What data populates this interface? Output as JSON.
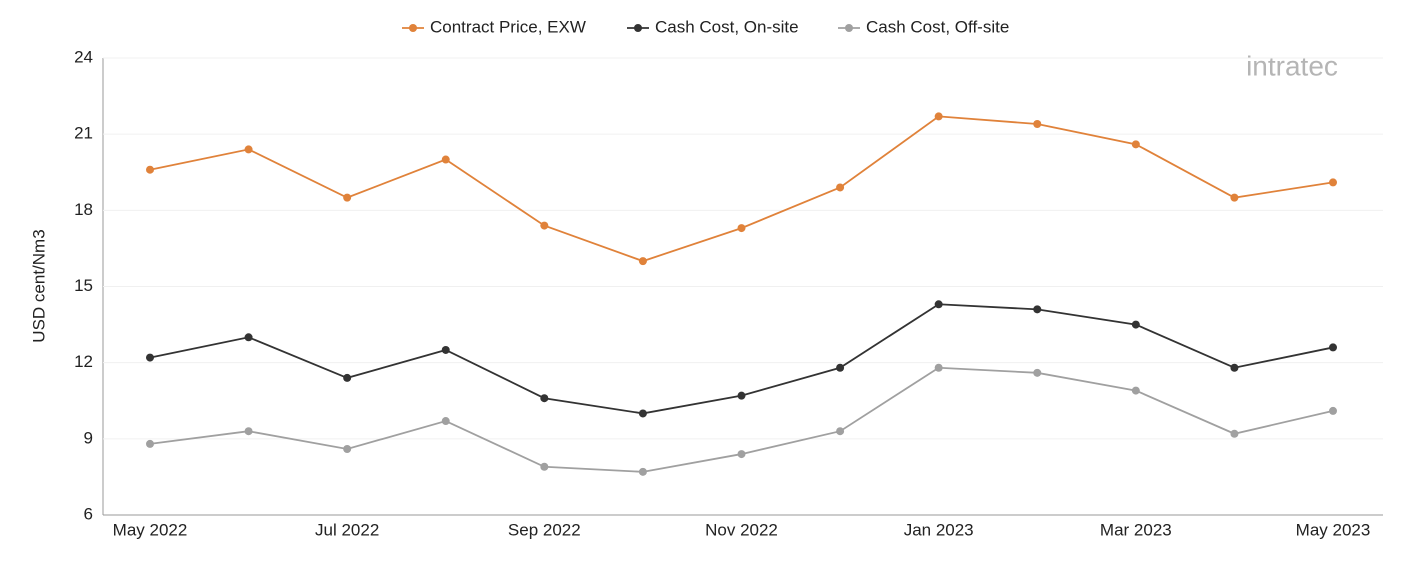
{
  "chart_data": {
    "type": "line",
    "categories": [
      "May 2022",
      null,
      "Jul 2022",
      null,
      "Sep 2022",
      null,
      "Nov 2022",
      null,
      "Jan 2023",
      null,
      "Mar 2023",
      null,
      "May 2023"
    ],
    "series": [
      {
        "name": "Contract Price, EXW",
        "color": "#e0823a",
        "values": [
          19.6,
          20.4,
          18.5,
          20.0,
          17.4,
          16.0,
          17.3,
          18.9,
          21.7,
          21.4,
          20.6,
          18.5,
          19.1
        ]
      },
      {
        "name": "Cash Cost, On-site",
        "color": "#333333",
        "values": [
          12.2,
          13.0,
          11.4,
          12.5,
          10.6,
          10.0,
          10.7,
          11.8,
          14.3,
          14.1,
          13.5,
          11.8,
          12.6
        ]
      },
      {
        "name": "Cash Cost, Off-site",
        "color": "#a0a0a0",
        "values": [
          8.8,
          9.3,
          8.6,
          9.7,
          7.9,
          7.7,
          8.4,
          9.3,
          11.8,
          11.6,
          10.9,
          9.2,
          10.1
        ]
      }
    ],
    "y_label": "USD cent/Nm3",
    "ylim": [
      6,
      24
    ],
    "yticks": [
      6,
      9,
      12,
      15,
      18,
      21,
      24
    ],
    "grid": true,
    "legend": "top",
    "watermark": "intratec"
  }
}
